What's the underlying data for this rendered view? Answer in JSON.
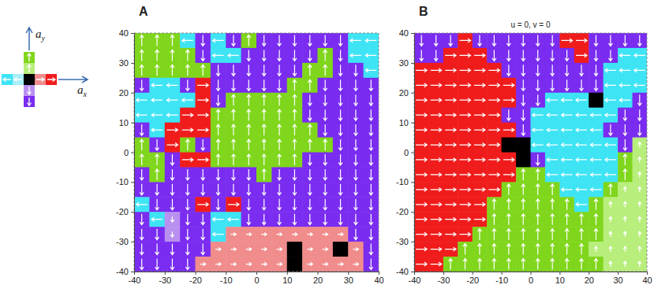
{
  "chart_data": [
    {
      "type": "heatmap",
      "title": "A",
      "xlim": [
        -40,
        40
      ],
      "ylim": [
        -40,
        40
      ],
      "xticks": [
        -40,
        -30,
        -20,
        -10,
        0,
        10,
        20,
        30,
        40
      ],
      "yticks": [
        -40,
        -30,
        -20,
        -10,
        0,
        10,
        20,
        30,
        40
      ],
      "cells": [
        [
          5,
          5,
          5,
          3,
          8,
          3,
          8,
          5,
          8,
          8,
          8,
          8,
          8,
          8,
          3,
          3
        ],
        [
          5,
          5,
          5,
          5,
          8,
          3,
          3,
          8,
          8,
          8,
          8,
          8,
          5,
          8,
          3,
          3
        ],
        [
          5,
          5,
          5,
          5,
          5,
          8,
          8,
          8,
          8,
          8,
          8,
          5,
          5,
          8,
          8,
          3
        ],
        [
          8,
          3,
          3,
          8,
          1,
          8,
          8,
          8,
          8,
          8,
          5,
          5,
          8,
          8,
          8,
          8
        ],
        [
          3,
          3,
          3,
          3,
          1,
          8,
          5,
          5,
          5,
          5,
          5,
          8,
          8,
          8,
          8,
          8
        ],
        [
          3,
          3,
          3,
          1,
          1,
          5,
          5,
          5,
          5,
          5,
          5,
          8,
          8,
          8,
          8,
          8
        ],
        [
          8,
          3,
          1,
          1,
          1,
          5,
          5,
          5,
          5,
          5,
          5,
          5,
          8,
          8,
          8,
          8
        ],
        [
          5,
          8,
          1,
          5,
          8,
          5,
          5,
          5,
          5,
          5,
          5,
          5,
          5,
          8,
          8,
          8
        ],
        [
          5,
          5,
          8,
          1,
          1,
          5,
          5,
          5,
          5,
          5,
          5,
          8,
          8,
          8,
          8,
          8
        ],
        [
          8,
          5,
          8,
          8,
          8,
          8,
          8,
          8,
          5,
          8,
          8,
          8,
          8,
          8,
          8,
          8
        ],
        [
          8,
          8,
          8,
          8,
          8,
          8,
          8,
          8,
          8,
          8,
          8,
          8,
          8,
          8,
          8,
          8
        ],
        [
          3,
          8,
          8,
          8,
          1,
          8,
          1,
          8,
          8,
          8,
          8,
          8,
          8,
          8,
          8,
          8
        ],
        [
          8,
          3,
          7,
          8,
          8,
          3,
          3,
          8,
          8,
          8,
          8,
          8,
          8,
          8,
          8,
          8
        ],
        [
          8,
          8,
          7,
          8,
          8,
          3,
          2,
          2,
          2,
          2,
          2,
          2,
          2,
          2,
          8,
          8
        ],
        [
          8,
          8,
          8,
          8,
          8,
          2,
          2,
          2,
          2,
          2,
          0,
          2,
          2,
          0,
          2,
          8
        ],
        [
          8,
          8,
          8,
          8,
          2,
          2,
          2,
          2,
          2,
          2,
          0,
          2,
          2,
          2,
          2,
          8
        ]
      ]
    },
    {
      "type": "heatmap",
      "title": "B",
      "subtitle": "u = 0, v = 0",
      "xlim": [
        -40,
        40
      ],
      "ylim": [
        -40,
        40
      ],
      "xticks": [
        -40,
        -30,
        -20,
        -10,
        0,
        10,
        20,
        30,
        40
      ],
      "yticks": [
        -40,
        -30,
        -20,
        -10,
        0,
        10,
        20,
        30,
        40
      ],
      "cells": [
        [
          8,
          8,
          8,
          1,
          8,
          8,
          8,
          8,
          8,
          8,
          1,
          1,
          8,
          8,
          8,
          8
        ],
        [
          8,
          8,
          1,
          1,
          1,
          8,
          8,
          8,
          8,
          8,
          8,
          1,
          8,
          8,
          3,
          3
        ],
        [
          1,
          1,
          1,
          1,
          1,
          1,
          8,
          8,
          8,
          8,
          8,
          8,
          8,
          3,
          3,
          3
        ],
        [
          1,
          1,
          1,
          1,
          1,
          1,
          1,
          8,
          8,
          8,
          8,
          8,
          8,
          3,
          3,
          3
        ],
        [
          1,
          1,
          1,
          1,
          1,
          1,
          1,
          8,
          8,
          3,
          3,
          3,
          0,
          3,
          3,
          8
        ],
        [
          1,
          1,
          1,
          1,
          1,
          1,
          8,
          8,
          3,
          3,
          3,
          3,
          3,
          3,
          8,
          8
        ],
        [
          1,
          1,
          1,
          1,
          1,
          1,
          1,
          8,
          3,
          3,
          3,
          3,
          3,
          8,
          8,
          8
        ],
        [
          1,
          1,
          1,
          1,
          1,
          1,
          0,
          0,
          3,
          3,
          3,
          3,
          3,
          3,
          8,
          6
        ],
        [
          1,
          1,
          1,
          1,
          1,
          1,
          1,
          0,
          8,
          3,
          3,
          3,
          3,
          3,
          5,
          6
        ],
        [
          1,
          1,
          1,
          1,
          1,
          1,
          1,
          5,
          5,
          3,
          3,
          3,
          3,
          3,
          5,
          6
        ],
        [
          1,
          1,
          1,
          1,
          1,
          1,
          5,
          5,
          5,
          5,
          3,
          3,
          3,
          5,
          6,
          6
        ],
        [
          1,
          1,
          1,
          1,
          1,
          5,
          5,
          5,
          5,
          5,
          5,
          3,
          5,
          6,
          6,
          6
        ],
        [
          1,
          1,
          1,
          1,
          1,
          5,
          5,
          5,
          5,
          5,
          5,
          5,
          5,
          6,
          6,
          6
        ],
        [
          1,
          1,
          1,
          1,
          5,
          5,
          5,
          5,
          5,
          5,
          5,
          5,
          5,
          6,
          6,
          6
        ],
        [
          1,
          1,
          1,
          5,
          5,
          5,
          5,
          5,
          5,
          5,
          5,
          5,
          6,
          6,
          6,
          6
        ],
        [
          1,
          1,
          5,
          5,
          5,
          5,
          5,
          5,
          5,
          5,
          5,
          5,
          5,
          6,
          6,
          6
        ]
      ]
    }
  ],
  "color_key": {
    "x_label": [
      "a",
      "x"
    ],
    "y_label": [
      "a",
      "y"
    ],
    "states": [
      {
        "color": "#000000",
        "ax": 0,
        "ay": 0
      },
      {
        "color": "#f01c1c",
        "ax": 1,
        "ay": 0
      },
      {
        "color": "#f08c8c",
        "ax": 0.5,
        "ay": 0
      },
      {
        "color": "#3ee4f4",
        "ax": -1,
        "ay": 0
      },
      {
        "color": "#a8eef8",
        "ax": -0.5,
        "ay": 0
      },
      {
        "color": "#80d61c",
        "ax": 0,
        "ay": 1
      },
      {
        "color": "#b8ee7c",
        "ax": 0,
        "ay": 0.5
      },
      {
        "color": "#b990f0",
        "ax": 0,
        "ay": -0.5
      },
      {
        "color": "#7a2cf0",
        "ax": 0,
        "ay": -1
      }
    ]
  }
}
